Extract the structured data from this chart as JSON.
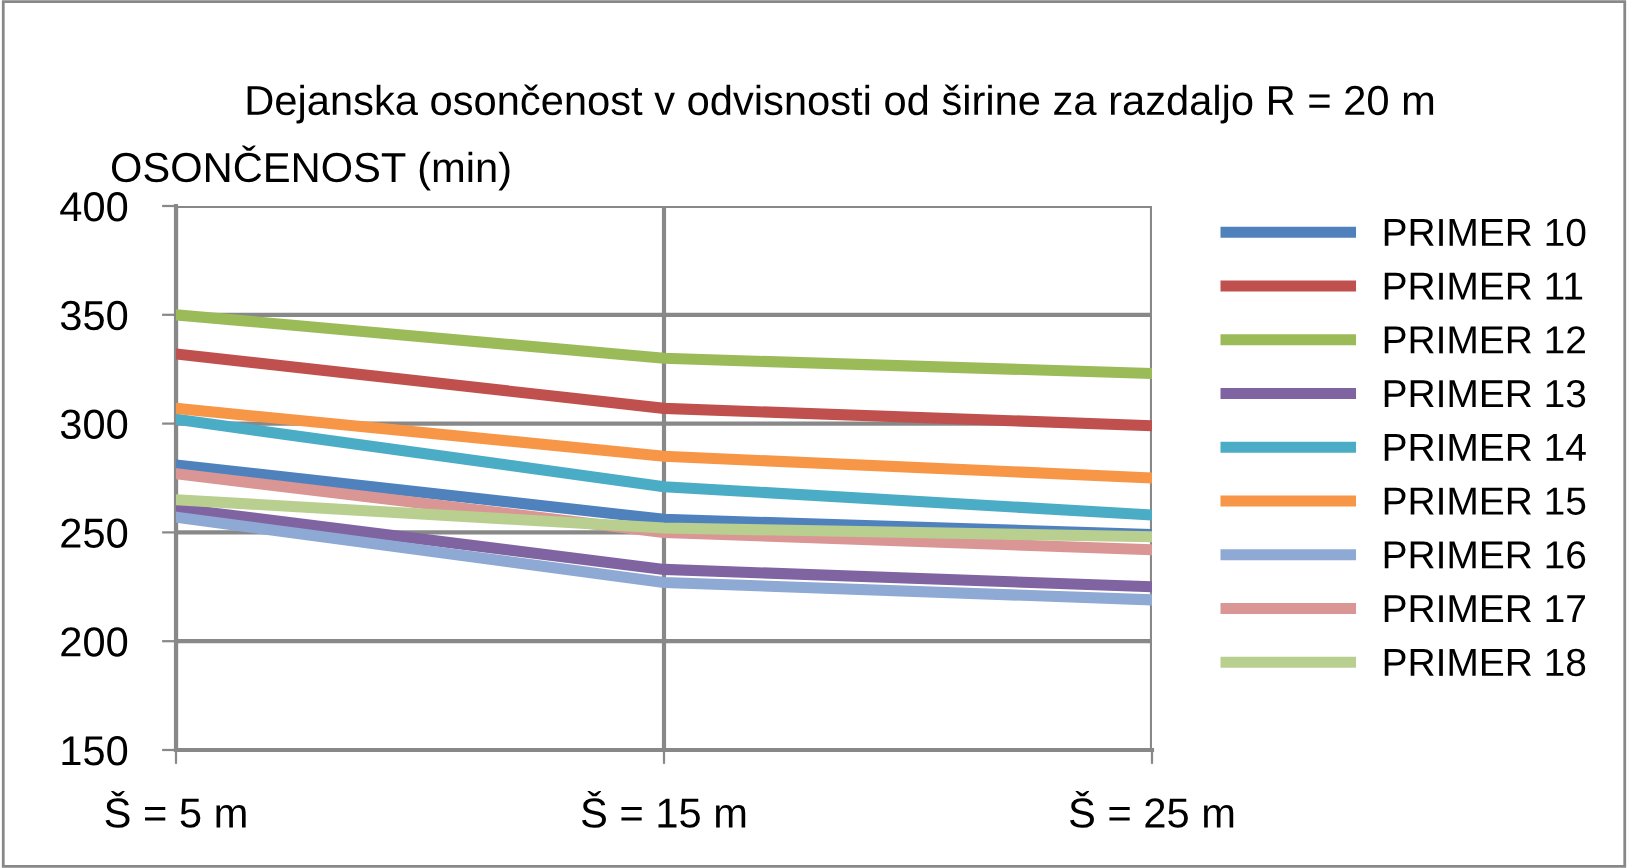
{
  "chart_data": {
    "type": "line",
    "title": "Dejanska osončenost v odvisnosti od širine za razdaljo R = 20 m",
    "ylabel": "OSONČENOST (min)",
    "categories": [
      "Š = 5 m",
      "Š = 15 m",
      "Š = 25 m"
    ],
    "ylim": [
      150,
      400
    ],
    "yticks": [
      150,
      200,
      250,
      300,
      350,
      400
    ],
    "grid": true,
    "legend": "right",
    "marker": "none",
    "line_style": "solid",
    "series": [
      {
        "name": "PRIMER 10",
        "color": "#4f81bd",
        "values": [
          281,
          256,
          249
        ]
      },
      {
        "name": "PRIMER 11",
        "color": "#c0504d",
        "values": [
          332,
          307,
          299
        ]
      },
      {
        "name": "PRIMER 12",
        "color": "#9bbb59",
        "values": [
          350,
          330,
          323
        ]
      },
      {
        "name": "PRIMER 13",
        "color": "#8064a2",
        "values": [
          261,
          233,
          225
        ]
      },
      {
        "name": "PRIMER 14",
        "color": "#4bacc6",
        "values": [
          302,
          271,
          258
        ]
      },
      {
        "name": "PRIMER 15",
        "color": "#f79646",
        "values": [
          307,
          285,
          275
        ]
      },
      {
        "name": "PRIMER 16",
        "color": "#8ea9d4",
        "values": [
          257,
          227,
          219
        ]
      },
      {
        "name": "PRIMER 17",
        "color": "#d99694",
        "values": [
          277,
          250,
          242
        ]
      },
      {
        "name": "PRIMER 18",
        "color": "#b9cf8f",
        "values": [
          265,
          252,
          248
        ]
      }
    ]
  }
}
